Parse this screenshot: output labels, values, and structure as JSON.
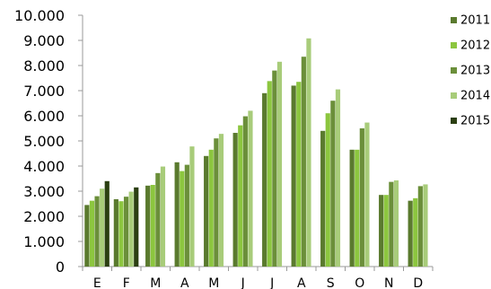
{
  "chart_data": {
    "type": "bar",
    "title": "",
    "xlabel": "",
    "ylabel": "",
    "ylim": [
      0,
      10000
    ],
    "yticks": [
      0,
      1000,
      2000,
      3000,
      4000,
      5000,
      6000,
      7000,
      8000,
      9000,
      10000
    ],
    "ytick_labels": [
      "0",
      "1.000",
      "2.000",
      "3.000",
      "4.000",
      "5.000",
      "6.000",
      "7.000",
      "8.000",
      "9.000",
      "10.000"
    ],
    "categories": [
      "E",
      "F",
      "M",
      "A",
      "M",
      "J",
      "J",
      "A",
      "S",
      "O",
      "N",
      "D"
    ],
    "grid": false,
    "legend_position": "right",
    "series": [
      {
        "name": "2011",
        "color": "#5a7a2e",
        "values": [
          2450,
          2680,
          3220,
          4150,
          4400,
          5320,
          6900,
          7200,
          5400,
          4650,
          2850,
          2620
        ]
      },
      {
        "name": "2012",
        "color": "#8cc63f",
        "values": [
          2620,
          2600,
          3250,
          3800,
          4650,
          5620,
          7380,
          7350,
          6100,
          4650,
          2850,
          2720
        ]
      },
      {
        "name": "2013",
        "color": "#6b8f3a",
        "values": [
          2800,
          2780,
          3720,
          4050,
          5100,
          5980,
          7800,
          8350,
          6600,
          5500,
          3370,
          3200
        ]
      },
      {
        "name": "2014",
        "color": "#a8cc7a",
        "values": [
          3100,
          2980,
          3980,
          4780,
          5280,
          6200,
          8150,
          9080,
          7050,
          5730,
          3430,
          3270
        ]
      },
      {
        "name": "2015",
        "color": "#2b3f12",
        "values": [
          3400,
          3150,
          null,
          null,
          null,
          null,
          null,
          null,
          null,
          null,
          null,
          null
        ]
      }
    ]
  }
}
